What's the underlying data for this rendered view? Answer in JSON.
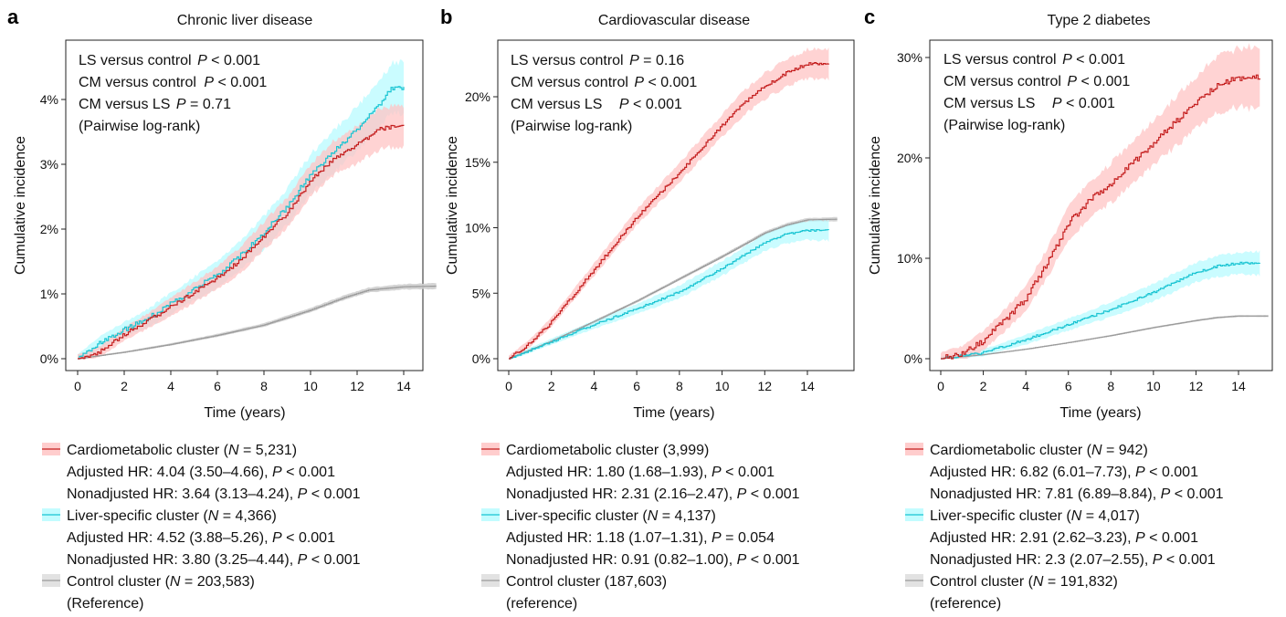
{
  "colors": {
    "cardiometabolic_line": "#c41e1e",
    "cardiometabolic_band": "#ffc4c4",
    "liver_line": "#19c4d2",
    "liver_band": "#b8fbff",
    "control_line": "#9a9a9a",
    "control_band": "#cfcfcf",
    "overlap_band": "#c6cccc"
  },
  "chart_data": [
    {
      "type": "line",
      "panel": "a",
      "title": "Chronic liver disease",
      "xlabel": "Time (years)",
      "ylabel": "Cumulative incidence",
      "xlim": [
        0,
        15.5
      ],
      "ylim": [
        0,
        4.85
      ],
      "x_ticks": [
        0,
        2,
        4,
        6,
        8,
        10,
        12,
        14
      ],
      "y_ticks": [
        0,
        1,
        2,
        3,
        4
      ],
      "y_tick_labels": [
        "0%",
        "1%",
        "2%",
        "3%",
        "4%"
      ],
      "annotations": [
        {
          "text": "LS versus control",
          "p": "P",
          "rest": " < 0.001"
        },
        {
          "text": "CM versus control",
          "p": "P",
          "rest": " < 0.001"
        },
        {
          "text": "CM versus LS",
          "p": "P",
          "rest": " = 0.71"
        },
        {
          "text": "(Pairwise log-rank)",
          "p": "",
          "rest": ""
        }
      ],
      "series": [
        {
          "key": "control",
          "x": [
            0,
            2,
            4,
            6,
            8,
            10,
            11.5,
            12.5,
            14,
            15.4
          ],
          "y": [
            0,
            0.1,
            0.22,
            0.36,
            0.52,
            0.75,
            0.95,
            1.06,
            1.11,
            1.12
          ],
          "band": 0.035
        },
        {
          "key": "liver",
          "x": [
            0,
            0.5,
            1,
            2,
            3,
            4,
            5,
            6,
            7,
            8,
            9,
            10,
            11,
            12,
            13,
            13.5,
            14
          ],
          "y": [
            0,
            0.12,
            0.26,
            0.45,
            0.62,
            0.85,
            1.08,
            1.3,
            1.6,
            1.95,
            2.35,
            2.85,
            3.2,
            3.55,
            3.95,
            4.18,
            4.18
          ],
          "band": 0.3
        },
        {
          "key": "cardiometabolic",
          "x": [
            0,
            0.5,
            1,
            2,
            3,
            4,
            5,
            6,
            7,
            8,
            9,
            10,
            11,
            12,
            13,
            13.5,
            14
          ],
          "y": [
            0,
            0.05,
            0.12,
            0.38,
            0.58,
            0.8,
            1.02,
            1.25,
            1.52,
            1.9,
            2.25,
            2.75,
            3.1,
            3.3,
            3.55,
            3.58,
            3.58
          ],
          "band": 0.25
        }
      ],
      "legend": [
        {
          "key": "cardiometabolic",
          "lines": [
            {
              "parts": [
                {
                  "t": "Cardiometabolic cluster ("
                },
                {
                  "t": "N",
                  "i": true
                },
                {
                  "t": " = 5,231)"
                }
              ]
            },
            {
              "parts": [
                {
                  "t": "Adjusted HR: 4.04 (3.50–4.66), "
                },
                {
                  "t": "P",
                  "i": true
                },
                {
                  "t": " < 0.001"
                }
              ]
            },
            {
              "parts": [
                {
                  "t": "Nonadjusted HR: 3.64 (3.13–4.24), "
                },
                {
                  "t": "P",
                  "i": true
                },
                {
                  "t": " < 0.001"
                }
              ]
            }
          ]
        },
        {
          "key": "liver",
          "lines": [
            {
              "parts": [
                {
                  "t": "Liver-specific cluster ("
                },
                {
                  "t": "N",
                  "i": true
                },
                {
                  "t": " = 4,366)"
                }
              ]
            },
            {
              "parts": [
                {
                  "t": "Adjusted HR: 4.52 (3.88–5.26), "
                },
                {
                  "t": "P",
                  "i": true
                },
                {
                  "t": "  < 0.001"
                }
              ]
            },
            {
              "parts": [
                {
                  "t": "Nonadjusted HR: 3.80 (3.25–4.44), "
                },
                {
                  "t": "P",
                  "i": true
                },
                {
                  "t": "  < 0.001"
                }
              ]
            }
          ]
        },
        {
          "key": "control",
          "lines": [
            {
              "parts": [
                {
                  "t": "Control cluster ("
                },
                {
                  "t": "N",
                  "i": true
                },
                {
                  "t": " = 203,583)"
                }
              ]
            },
            {
              "parts": [
                {
                  "t": "(Reference)"
                }
              ]
            }
          ]
        }
      ]
    },
    {
      "type": "line",
      "panel": "b",
      "title": "Cardiovascular disease",
      "xlabel": "Time (years)",
      "ylabel": "Cumulative incidence",
      "xlim": [
        0,
        15.5
      ],
      "ylim": [
        0,
        24.3
      ],
      "x_ticks": [
        0,
        2,
        4,
        6,
        8,
        10,
        12,
        14
      ],
      "y_ticks": [
        0,
        5,
        10,
        15,
        20
      ],
      "y_tick_labels": [
        "0%",
        "5%",
        "10%",
        "15%",
        "20%"
      ],
      "annotations": [
        {
          "text": "LS versus control",
          "p": "P",
          "rest": " = 0.16"
        },
        {
          "text": "CM versus control",
          "p": "P",
          "rest": " < 0.001"
        },
        {
          "text": "CM versus LS",
          "p": "P",
          "rest": " < 0.001"
        },
        {
          "text": "(Pairwise log-rank)",
          "p": "",
          "rest": ""
        }
      ],
      "series": [
        {
          "key": "control",
          "x": [
            0,
            2,
            4,
            6,
            8,
            10,
            11,
            12,
            13,
            14,
            15.4
          ],
          "y": [
            0,
            1.35,
            2.85,
            4.4,
            6.1,
            7.8,
            8.7,
            9.6,
            10.2,
            10.6,
            10.65
          ],
          "band": 0.12
        },
        {
          "key": "liver",
          "x": [
            0,
            2,
            4,
            6,
            8,
            10,
            11,
            12,
            13,
            14,
            15
          ],
          "y": [
            0,
            1.3,
            2.6,
            3.8,
            5.1,
            6.9,
            7.9,
            8.9,
            9.5,
            9.8,
            9.8
          ],
          "band": 0.6
        },
        {
          "key": "cardiometabolic",
          "x": [
            0,
            1,
            2,
            3,
            4,
            5,
            6,
            7,
            8,
            9,
            10,
            11,
            12,
            13,
            14,
            15
          ],
          "y": [
            0,
            1.2,
            2.8,
            4.8,
            6.8,
            8.8,
            10.8,
            12.5,
            14.2,
            16.0,
            17.8,
            19.5,
            20.8,
            21.8,
            22.5,
            22.5
          ],
          "band": 0.9
        }
      ],
      "legend": [
        {
          "key": "cardiometabolic",
          "lines": [
            {
              "parts": [
                {
                  "t": "Cardiometabolic cluster (3,999)"
                }
              ]
            },
            {
              "parts": [
                {
                  "t": "Adjusted HR: 1.80 (1.68–1.93), "
                },
                {
                  "t": "P",
                  "i": true
                },
                {
                  "t": " < 0.001"
                }
              ]
            },
            {
              "parts": [
                {
                  "t": "Nonadjusted HR: 2.31 (2.16–2.47), "
                },
                {
                  "t": "P",
                  "i": true
                },
                {
                  "t": " < 0.001"
                }
              ]
            }
          ]
        },
        {
          "key": "liver",
          "lines": [
            {
              "parts": [
                {
                  "t": "Liver-specific cluster ("
                },
                {
                  "t": "N",
                  "i": true
                },
                {
                  "t": " = 4,137)"
                }
              ]
            },
            {
              "parts": [
                {
                  "t": "Adjusted HR: 1.18 (1.07–1.31), "
                },
                {
                  "t": "P",
                  "i": true
                },
                {
                  "t": " = 0.054"
                }
              ]
            },
            {
              "parts": [
                {
                  "t": "Nonadjusted HR: 0.91 (0.82–1.00), "
                },
                {
                  "t": "P",
                  "i": true
                },
                {
                  "t": " < 0.001"
                }
              ]
            }
          ]
        },
        {
          "key": "control",
          "lines": [
            {
              "parts": [
                {
                  "t": "Control cluster (187,603)"
                }
              ]
            },
            {
              "parts": [
                {
                  "t": "(reference)"
                }
              ]
            }
          ]
        }
      ]
    },
    {
      "type": "line",
      "panel": "c",
      "title": "Type 2 diabetes",
      "xlabel": "Time (years)",
      "ylabel": "Cumulative incidence",
      "xlim": [
        0,
        15.5
      ],
      "ylim": [
        0,
        31
      ],
      "x_ticks": [
        0,
        2,
        4,
        6,
        8,
        10,
        12,
        14
      ],
      "y_ticks": [
        0,
        10,
        20,
        30
      ],
      "y_tick_labels": [
        "0%",
        "10%",
        "20%",
        "30%"
      ],
      "annotations": [
        {
          "text": "LS versus control",
          "p": "P",
          "rest": " < 0.001"
        },
        {
          "text": "CM versus control",
          "p": "P",
          "rest": " < 0.001"
        },
        {
          "text": "CM versus LS",
          "p": "P",
          "rest": " < 0.001"
        },
        {
          "text": "(Pairwise log-rank)",
          "p": "",
          "rest": ""
        }
      ],
      "series": [
        {
          "key": "control",
          "x": [
            0,
            2,
            4,
            6,
            8,
            10,
            12,
            13,
            14,
            15.4
          ],
          "y": [
            0,
            0.4,
            0.95,
            1.6,
            2.3,
            3.1,
            3.8,
            4.1,
            4.25,
            4.25
          ],
          "band": 0.08
        },
        {
          "key": "liver",
          "x": [
            0,
            2,
            4,
            6,
            8,
            10,
            11,
            12,
            13,
            14,
            15
          ],
          "y": [
            0,
            0.6,
            1.9,
            3.4,
            4.9,
            6.6,
            7.6,
            8.6,
            9.2,
            9.5,
            9.5
          ],
          "band": 0.9
        },
        {
          "key": "cardiometabolic",
          "x": [
            0,
            1,
            2,
            3,
            4,
            5,
            6,
            7,
            8,
            9,
            10,
            11,
            12,
            13,
            14,
            15
          ],
          "y": [
            0,
            0.5,
            1.8,
            3.8,
            6.0,
            9.5,
            13.5,
            15.8,
            17.5,
            19.5,
            21.5,
            23.5,
            25.5,
            27.3,
            28.0,
            28.0
          ],
          "band": 2.4
        }
      ],
      "legend": [
        {
          "key": "cardiometabolic",
          "lines": [
            {
              "parts": [
                {
                  "t": "Cardiometabolic cluster ("
                },
                {
                  "t": "N",
                  "i": true
                },
                {
                  "t": " = 942)"
                }
              ]
            },
            {
              "parts": [
                {
                  "t": "Adjusted HR: 6.82 (6.01–7.73), "
                },
                {
                  "t": "P",
                  "i": true
                },
                {
                  "t": " < 0.001"
                }
              ]
            },
            {
              "parts": [
                {
                  "t": "Nonadjusted HR: 7.81 (6.89–8.84), "
                },
                {
                  "t": "P",
                  "i": true
                },
                {
                  "t": " < 0.001"
                }
              ]
            }
          ]
        },
        {
          "key": "liver",
          "lines": [
            {
              "parts": [
                {
                  "t": "Liver-specific cluster ("
                },
                {
                  "t": "N",
                  "i": true
                },
                {
                  "t": " = 4,017)"
                }
              ]
            },
            {
              "parts": [
                {
                  "t": "Adjusted HR: 2.91 (2.62–3.23), "
                },
                {
                  "t": "P",
                  "i": true
                },
                {
                  "t": " < 0.001"
                }
              ]
            },
            {
              "parts": [
                {
                  "t": "Nonadjusted HR: 2.3 (2.07–2.55), "
                },
                {
                  "t": "P",
                  "i": true
                },
                {
                  "t": " < 0.001"
                }
              ]
            }
          ]
        },
        {
          "key": "control",
          "lines": [
            {
              "parts": [
                {
                  "t": "Control cluster ("
                },
                {
                  "t": "N",
                  "i": true
                },
                {
                  "t": " = 191,832)"
                }
              ]
            },
            {
              "parts": [
                {
                  "t": "(reference)"
                }
              ]
            }
          ]
        }
      ]
    }
  ]
}
